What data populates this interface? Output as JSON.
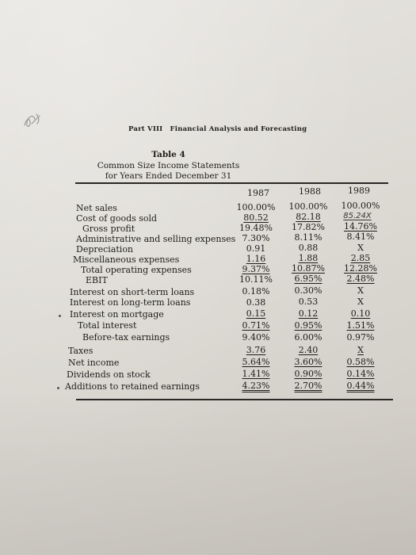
{
  "header": {
    "part": "Part VIII",
    "title": "Financial Analysis and Forecasting"
  },
  "table": {
    "number": "Table 4",
    "title": "Common Size Income Statements",
    "subtitle": "for Years Ended December 31",
    "years": [
      "1987",
      "1988",
      "1989"
    ],
    "rows": [
      {
        "label": "Net sales",
        "values": [
          "100.00%",
          "100.00%",
          "100.00%"
        ]
      },
      {
        "label": "Cost of goods sold",
        "values": [
          "80.52",
          "82.18",
          "85.24X"
        ]
      },
      {
        "label": "Gross profit",
        "values": [
          "19.48%",
          "17.82%",
          "14.76%"
        ]
      },
      {
        "label": "Administrative and selling expenses",
        "values": [
          "7.30%",
          "8.11%",
          "8.41%"
        ]
      },
      {
        "label": "Depreciation",
        "values": [
          "0.91",
          "0.88",
          "X"
        ]
      },
      {
        "label": "Miscellaneous expenses",
        "values": [
          "1.16",
          "1.88",
          "2.85"
        ]
      },
      {
        "label": "Total operating expenses",
        "values": [
          "9.37%",
          "10.87%",
          "12.28%"
        ]
      },
      {
        "label": "EBIT",
        "values": [
          "10.11%",
          "6.95%",
          "2.48%"
        ]
      },
      {
        "label": "Interest on short-term loans",
        "values": [
          "0.18%",
          "0.30%",
          "X"
        ]
      },
      {
        "label": "Interest on long-term loans",
        "values": [
          "0.38",
          "0.53",
          "X"
        ]
      },
      {
        "label": "Interest on mortgage",
        "values": [
          "0.15",
          "0.12",
          "0.10"
        ]
      },
      {
        "label": "Total interest",
        "values": [
          "0.71%",
          "0.95%",
          "1.51%"
        ]
      },
      {
        "label": "Before-tax earnings",
        "values": [
          "9.40%",
          "6.00%",
          "0.97%"
        ]
      },
      {
        "label": "Taxes",
        "values": [
          "3.76",
          "2.40",
          "X"
        ]
      },
      {
        "label": "Net income",
        "values": [
          "5.64%",
          "3.60%",
          "0.58%"
        ]
      },
      {
        "label": "Dividends on stock",
        "values": [
          "1.41%",
          "0.90%",
          "0.14%"
        ]
      },
      {
        "label": "Additions to retained earnings",
        "values": [
          "4.23%",
          "2.70%",
          "0.44%"
        ]
      }
    ]
  },
  "scribble": {
    "icon": "handwritten-scribble-icon",
    "color": "#9a9a9a"
  }
}
